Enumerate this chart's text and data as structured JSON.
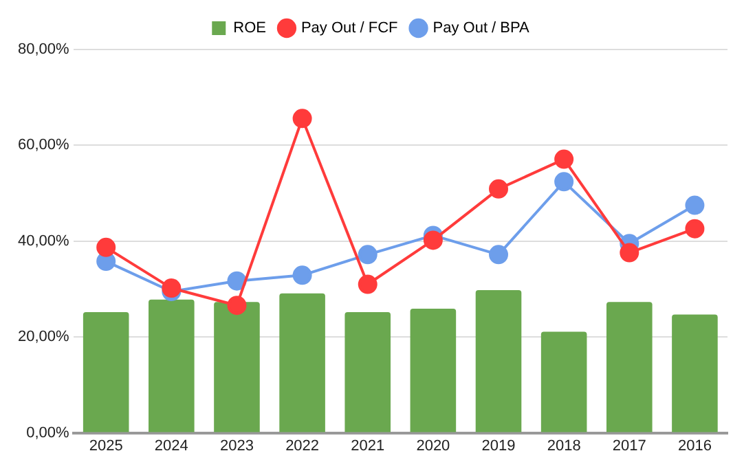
{
  "chart_data": {
    "type": "bar",
    "categories": [
      "2025",
      "2024",
      "2023",
      "2022",
      "2021",
      "2020",
      "2019",
      "2018",
      "2017",
      "2016"
    ],
    "series": [
      {
        "name": "ROE",
        "color": "#6aa84f",
        "values": [
          25.2,
          27.8,
          27.3,
          29.1,
          25.2,
          25.9,
          29.8,
          21.1,
          27.3,
          24.7
        ]
      },
      {
        "name": "Pay Out / FCF",
        "type": "line",
        "color": "#ff3b3b",
        "values": [
          38.7,
          30.2,
          26.6,
          65.6,
          31.0,
          40.2,
          50.9,
          57.1,
          37.6,
          42.6
        ]
      },
      {
        "name": "Pay Out / BPA",
        "type": "line",
        "color": "#6d9eeb",
        "values": [
          35.8,
          29.5,
          31.7,
          32.9,
          37.2,
          41.2,
          37.2,
          52.4,
          39.5,
          47.5
        ]
      }
    ],
    "ylim": [
      0,
      80
    ],
    "yticks": [
      {
        "value": 0,
        "label": "0,00%"
      },
      {
        "value": 20,
        "label": "20,00%"
      },
      {
        "value": 40,
        "label": "40,00%"
      },
      {
        "value": 60,
        "label": "60,00%"
      },
      {
        "value": 80,
        "label": "80,00%"
      }
    ],
    "grid": "y",
    "legend": "top",
    "marker": "circle",
    "line_style": "solid"
  }
}
